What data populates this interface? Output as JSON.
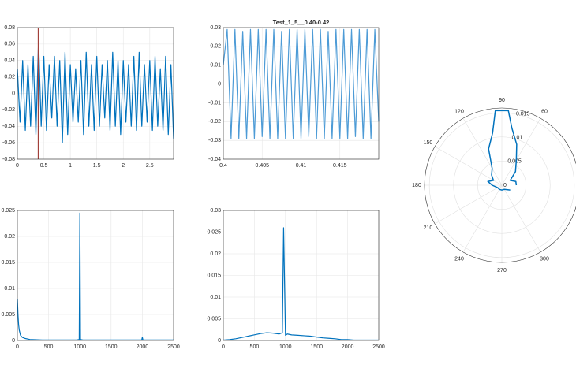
{
  "chart_data": [
    {
      "type": "line",
      "color": "#0072bd",
      "grid": true,
      "x": [
        0,
        0.05,
        0.1,
        0.15,
        0.2,
        0.25,
        0.3,
        0.35,
        0.4,
        0.45,
        0.5,
        0.55,
        0.6,
        0.65,
        0.7,
        0.75,
        0.8,
        0.85,
        0.9,
        0.95,
        1.0,
        1.05,
        1.1,
        1.15,
        1.2,
        1.25,
        1.3,
        1.35,
        1.4,
        1.45,
        1.5,
        1.55,
        1.6,
        1.65,
        1.7,
        1.75,
        1.8,
        1.85,
        1.9,
        1.95,
        2.0,
        2.05,
        2.1,
        2.15,
        2.2,
        2.25,
        2.3,
        2.35,
        2.4,
        2.45,
        2.5,
        2.55,
        2.6,
        2.65,
        2.7,
        2.75,
        2.8,
        2.85,
        2.9,
        2.95
      ],
      "values": [
        0.03,
        -0.035,
        0.04,
        -0.045,
        0.035,
        -0.04,
        0.045,
        -0.05,
        0.065,
        -0.04,
        0.045,
        -0.045,
        0.035,
        -0.03,
        0.045,
        -0.04,
        0.04,
        -0.06,
        0.05,
        -0.05,
        0.035,
        -0.035,
        0.03,
        -0.035,
        0.04,
        -0.05,
        0.05,
        -0.04,
        0.035,
        -0.045,
        0.045,
        -0.04,
        0.035,
        -0.03,
        0.04,
        -0.045,
        0.05,
        -0.04,
        0.04,
        -0.05,
        0.04,
        -0.035,
        0.035,
        -0.04,
        0.045,
        -0.045,
        0.05,
        -0.04,
        0.035,
        -0.035,
        0.04,
        -0.045,
        0.045,
        -0.04,
        0.03,
        -0.045,
        0.045,
        -0.05,
        0.035,
        -0.055
      ],
      "xlim": [
        0,
        2.95
      ],
      "xticks": [
        0,
        0.5,
        1,
        1.5,
        2,
        2.5
      ],
      "ylim": [
        -0.08,
        0.08
      ],
      "yticks": [
        -0.08,
        -0.06,
        -0.04,
        -0.02,
        0,
        0.02,
        0.04,
        0.06,
        0.08
      ],
      "cursor_x": 0.4,
      "cursor_color": "#a2403a"
    },
    {
      "type": "line",
      "title": "Test_1_5__0.40-0.42",
      "color": "#4d9bd6",
      "grid": true,
      "x": [
        0.4,
        0.4005,
        0.401,
        0.4015,
        0.402,
        0.4025,
        0.403,
        0.4035,
        0.404,
        0.4045,
        0.405,
        0.4055,
        0.406,
        0.4065,
        0.407,
        0.4075,
        0.408,
        0.4085,
        0.409,
        0.4095,
        0.41,
        0.4105,
        0.411,
        0.4115,
        0.412,
        0.4125,
        0.413,
        0.4135,
        0.414,
        0.4145,
        0.415,
        0.4155,
        0.416,
        0.4165,
        0.417,
        0.4175,
        0.418,
        0.4185,
        0.419,
        0.4195,
        0.42
      ],
      "values": [
        0.01,
        0.029,
        -0.029,
        0.029,
        -0.029,
        0.028,
        -0.029,
        0.029,
        -0.029,
        0.029,
        -0.028,
        0.029,
        -0.029,
        0.029,
        -0.029,
        0.028,
        -0.029,
        0.029,
        -0.029,
        0.029,
        -0.029,
        0.029,
        -0.028,
        0.029,
        -0.029,
        0.029,
        -0.029,
        0.028,
        -0.029,
        0.029,
        -0.029,
        0.029,
        -0.029,
        0.029,
        -0.028,
        0.029,
        -0.029,
        0.029,
        -0.029,
        0.029,
        -0.02
      ],
      "xlim": [
        0.4,
        0.42
      ],
      "xticks": [
        0.4,
        0.405,
        0.41,
        0.415
      ],
      "ylim": [
        -0.04,
        0.03
      ],
      "yticks": [
        -0.04,
        -0.03,
        -0.02,
        -0.01,
        0,
        0.01,
        0.02,
        0.03
      ]
    },
    {
      "type": "polar",
      "color": "#0072bd",
      "grid": true,
      "theta": [
        0,
        15,
        30,
        45,
        60,
        70,
        80,
        85,
        95,
        100,
        110,
        120,
        135,
        150,
        165,
        180,
        210,
        240,
        270,
        300,
        330
      ],
      "r": [
        0.003,
        0.003,
        0.002,
        0.004,
        0.006,
        0.009,
        0.012,
        0.0155,
        0.0155,
        0.011,
        0.008,
        0.004,
        0.003,
        0.002,
        0.003,
        0.002,
        0.001,
        0.001,
        0.001,
        0.001,
        0.002
      ],
      "rlim": [
        0,
        0.016
      ],
      "rticks": [
        0,
        0.005,
        0.01,
        0.015
      ],
      "thetaticks": [
        60,
        90,
        120,
        150,
        180,
        210,
        240,
        270,
        300
      ]
    },
    {
      "type": "line",
      "color": "#0072bd",
      "grid": true,
      "x": [
        0,
        10,
        20,
        30,
        50,
        80,
        120,
        200,
        400,
        600,
        800,
        950,
        990,
        1000,
        1010,
        1050,
        1200,
        1500,
        1800,
        1990,
        2000,
        2010,
        2200,
        2500
      ],
      "values": [
        0.008,
        0.005,
        0.003,
        0.002,
        0.001,
        0.0006,
        0.0004,
        0.0002,
        0.0001,
        0.0001,
        0.0001,
        0.0001,
        0.0002,
        0.0245,
        0.0002,
        0.0001,
        0.0001,
        0.0001,
        0.0001,
        0.0001,
        0.0006,
        0.0001,
        0.0001,
        0.0001
      ],
      "xlim": [
        0,
        2500
      ],
      "xticks": [
        0,
        500,
        1000,
        1500,
        2000,
        2500
      ],
      "ylim": [
        0,
        0.025
      ],
      "yticks": [
        0,
        0.005,
        0.01,
        0.015,
        0.02,
        0.025
      ]
    },
    {
      "type": "line",
      "color": "#0072bd",
      "grid": true,
      "x": [
        0,
        100,
        200,
        300,
        400,
        500,
        600,
        700,
        800,
        900,
        950,
        970,
        1000,
        1030,
        1100,
        1200,
        1300,
        1400,
        1500,
        1600,
        1700,
        1800,
        1900,
        2000,
        2100,
        2200,
        2300,
        2400,
        2500
      ],
      "values": [
        0.0001,
        0.0002,
        0.0004,
        0.0007,
        0.001,
        0.0013,
        0.0016,
        0.0018,
        0.0017,
        0.0015,
        0.0018,
        0.026,
        0.0012,
        0.0015,
        0.0013,
        0.0012,
        0.0011,
        0.001,
        0.0008,
        0.0006,
        0.0005,
        0.0004,
        0.0002,
        0.0002,
        0.0001,
        0.0001,
        0.0001,
        0.0001,
        0.0001
      ],
      "xlim": [
        0,
        2500
      ],
      "xticks": [
        0,
        500,
        1000,
        1500,
        2000,
        2500
      ],
      "ylim": [
        0,
        0.03
      ],
      "yticks": [
        0,
        0.005,
        0.01,
        0.015,
        0.02,
        0.025,
        0.03
      ]
    }
  ]
}
